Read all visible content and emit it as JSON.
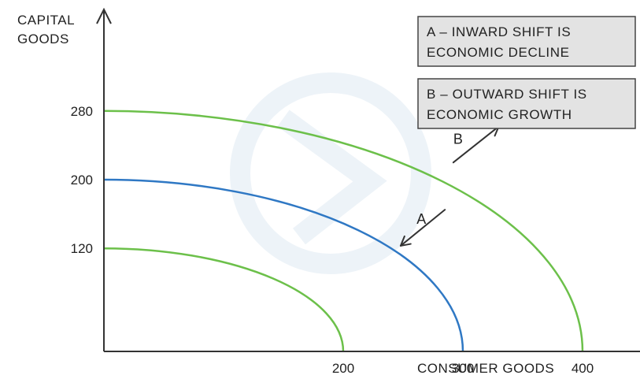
{
  "chart_data": {
    "type": "line",
    "xlabel": "CONSUMER GOODS",
    "ylabel": [
      "CAPITAL",
      "GOODS"
    ],
    "x_ticks": [
      200,
      300,
      400
    ],
    "y_ticks": [
      120,
      200,
      280
    ],
    "x_range": [
      0,
      470
    ],
    "y_range": [
      0,
      325
    ],
    "series": [
      {
        "x_intercept": 200,
        "y_intercept": 120,
        "color": "#6cc04a"
      },
      {
        "x_intercept": 300,
        "y_intercept": 200,
        "color": "#2f78c4"
      },
      {
        "x_intercept": 400,
        "y_intercept": 280,
        "color": "#6cc04a"
      }
    ],
    "shifts": [
      {
        "label": "A",
        "direction": "inward",
        "from": [
          285,
          165
        ],
        "to": [
          248,
          123
        ]
      },
      {
        "label": "B",
        "direction": "outward",
        "from": [
          292,
          220
        ],
        "to": [
          330,
          262
        ]
      }
    ],
    "legend": [
      {
        "lines": [
          "A – INWARD SHIFT IS",
          "ECONOMIC DECLINE"
        ]
      },
      {
        "lines": [
          "B – OUTWARD SHIFT IS",
          "ECONOMIC GROWTH"
        ]
      }
    ],
    "grid": false,
    "legend_position": "top-right",
    "axis_color": "#333333"
  }
}
